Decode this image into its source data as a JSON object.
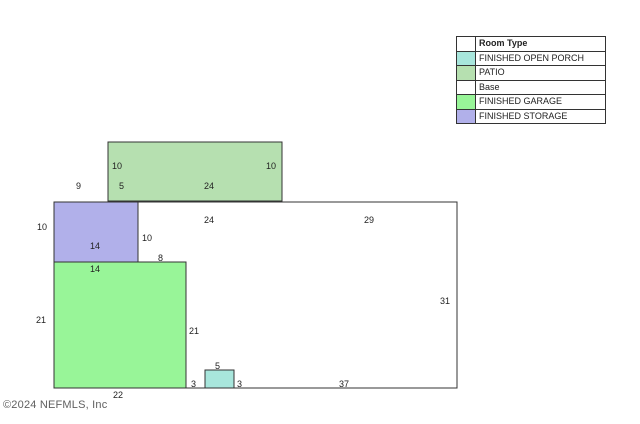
{
  "legend": {
    "header": "Room Type",
    "items": [
      {
        "label": "FINISHED OPEN PORCH",
        "color": "#a8e6dc"
      },
      {
        "label": "PATIO",
        "color": "#b6e0b0"
      },
      {
        "label": "Base",
        "color": "#ffffff"
      },
      {
        "label": "FINISHED GARAGE",
        "color": "#98f598"
      },
      {
        "label": "FINISHED STORAGE",
        "color": "#b1b0ea"
      }
    ]
  },
  "dimensions": {
    "patio_left": "10",
    "patio_right": "10",
    "patio_offset_left": "9",
    "patio_offset_base": "5",
    "patio_width": "24",
    "base_top_inner": "24",
    "base_top": "29",
    "base_right": "31",
    "base_bottom": "37",
    "storage_left": "10",
    "storage_bottom": "14",
    "storage_right": "10",
    "storage_ledge": "8",
    "garage_top": "14",
    "garage_left": "21",
    "garage_right": "21",
    "garage_bottom": "22",
    "garage_step": "3",
    "porch_top": "5",
    "porch_right": "3"
  },
  "watermark": "©2024 NEFMLS, Inc"
}
